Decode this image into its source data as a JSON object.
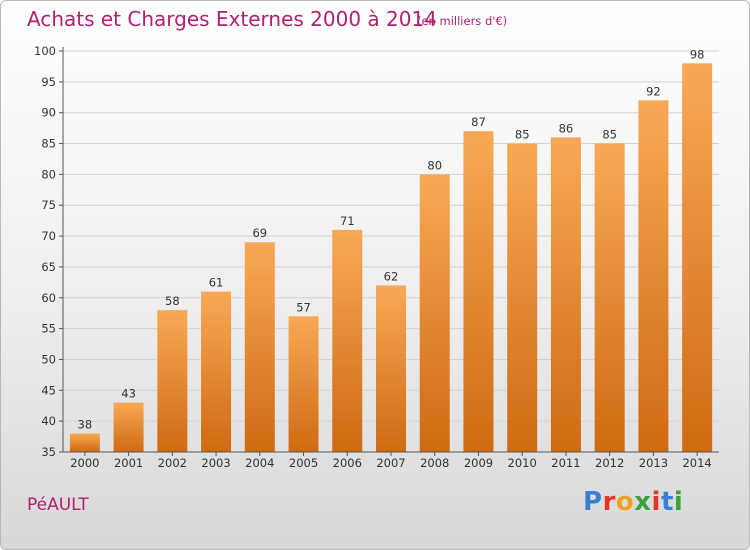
{
  "header": {
    "title": "Achats et Charges Externes 2000 à 2014",
    "unit": "(en milliers d'€)"
  },
  "footer": {
    "commune": "PéAULT",
    "brand": "Proxiti",
    "brand_letters": [
      "P",
      "r",
      "o",
      "x",
      "i",
      "t",
      "i"
    ],
    "brand_colors": [
      "#3a7fd0",
      "#e8332a",
      "#f2a11f",
      "#3aa33a",
      "#e8332a",
      "#3a7fd0",
      "#3aa33a"
    ]
  },
  "chart_data": {
    "type": "bar",
    "title": "Achats et Charges Externes 2000 à 2014",
    "subtitle": "(en milliers d'€)",
    "xlabel": "",
    "ylabel": "",
    "categories": [
      "2000",
      "2001",
      "2002",
      "2003",
      "2004",
      "2005",
      "2006",
      "2007",
      "2008",
      "2009",
      "2010",
      "2011",
      "2012",
      "2013",
      "2014"
    ],
    "values": [
      38,
      43,
      58,
      61,
      69,
      57,
      71,
      62,
      80,
      87,
      85,
      86,
      85,
      92,
      98
    ],
    "ylim": [
      35,
      100
    ],
    "yticks": [
      35,
      40,
      45,
      50,
      55,
      60,
      65,
      70,
      75,
      80,
      85,
      90,
      95,
      100
    ],
    "grid": true,
    "legend": "none",
    "colors": {
      "bar_top": "#f8a955",
      "bar_bottom": "#cf6a12",
      "grid": "#d2d2d2"
    }
  }
}
